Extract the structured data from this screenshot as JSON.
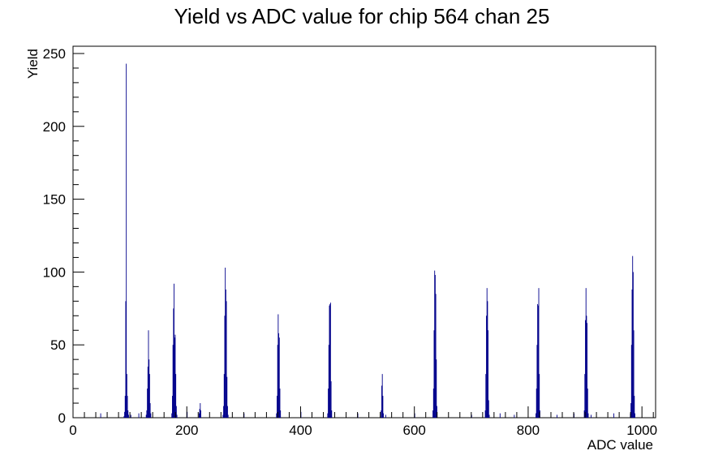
{
  "chart_data": {
    "type": "bar",
    "title": "Yield vs ADC value for chip 564 chan 25",
    "xlabel": "ADC value",
    "ylabel": "Yield",
    "xlim": [
      0,
      1024
    ],
    "ylim": [
      0,
      255
    ],
    "grid": false,
    "legend": "none",
    "x_ticks": [
      0,
      200,
      400,
      600,
      800,
      1000
    ],
    "y_ticks": [
      0,
      50,
      100,
      150,
      200,
      250
    ],
    "x_tick_labels": [
      "0",
      "200",
      "400",
      "600",
      "800",
      "1000"
    ],
    "y_tick_labels": [
      "0",
      "50",
      "100",
      "150",
      "200",
      "250"
    ],
    "bin_width": 1,
    "series": [
      {
        "color": "#00008b",
        "bins": [
          [
            48,
            3
          ],
          [
            89,
            1
          ],
          [
            90,
            4
          ],
          [
            91,
            15
          ],
          [
            92,
            80
          ],
          [
            93,
            243
          ],
          [
            94,
            30
          ],
          [
            95,
            15
          ],
          [
            96,
            5
          ],
          [
            97,
            2
          ],
          [
            101,
            2
          ],
          [
            115,
            3
          ],
          [
            128,
            2
          ],
          [
            129,
            5
          ],
          [
            130,
            20
          ],
          [
            131,
            35
          ],
          [
            132,
            60
          ],
          [
            133,
            40
          ],
          [
            134,
            30
          ],
          [
            135,
            10
          ],
          [
            136,
            3
          ],
          [
            173,
            3
          ],
          [
            174,
            15
          ],
          [
            175,
            50
          ],
          [
            176,
            75
          ],
          [
            177,
            92
          ],
          [
            178,
            55
          ],
          [
            179,
            57
          ],
          [
            180,
            30
          ],
          [
            181,
            8
          ],
          [
            182,
            2
          ],
          [
            200,
            4
          ],
          [
            221,
            3
          ],
          [
            222,
            6
          ],
          [
            223,
            10
          ],
          [
            224,
            5
          ],
          [
            263,
            2
          ],
          [
            264,
            8
          ],
          [
            265,
            30
          ],
          [
            266,
            70
          ],
          [
            267,
            103
          ],
          [
            268,
            88
          ],
          [
            269,
            80
          ],
          [
            270,
            28
          ],
          [
            271,
            8
          ],
          [
            272,
            2
          ],
          [
            300,
            3
          ],
          [
            357,
            3
          ],
          [
            358,
            15
          ],
          [
            359,
            50
          ],
          [
            360,
            71
          ],
          [
            361,
            58
          ],
          [
            362,
            55
          ],
          [
            363,
            20
          ],
          [
            364,
            5
          ],
          [
            400,
            4
          ],
          [
            447,
            3
          ],
          [
            448,
            20
          ],
          [
            449,
            50
          ],
          [
            450,
            77
          ],
          [
            451,
            78
          ],
          [
            452,
            79
          ],
          [
            453,
            25
          ],
          [
            454,
            5
          ],
          [
            500,
            3
          ],
          [
            541,
            5
          ],
          [
            542,
            22
          ],
          [
            543,
            30
          ],
          [
            544,
            15
          ],
          [
            545,
            3
          ],
          [
            549,
            2
          ],
          [
            600,
            3
          ],
          [
            632,
            5
          ],
          [
            633,
            20
          ],
          [
            634,
            60
          ],
          [
            635,
            101
          ],
          [
            636,
            98
          ],
          [
            637,
            85
          ],
          [
            638,
            40
          ],
          [
            639,
            8
          ],
          [
            700,
            2
          ],
          [
            724,
            5
          ],
          [
            725,
            30
          ],
          [
            726,
            70
          ],
          [
            727,
            89
          ],
          [
            728,
            80
          ],
          [
            729,
            60
          ],
          [
            730,
            12
          ],
          [
            731,
            2
          ],
          [
            750,
            3
          ],
          [
            775,
            2
          ],
          [
            813,
            3
          ],
          [
            814,
            20
          ],
          [
            815,
            50
          ],
          [
            816,
            78
          ],
          [
            817,
            77
          ],
          [
            818,
            89
          ],
          [
            819,
            30
          ],
          [
            820,
            5
          ],
          [
            850,
            2
          ],
          [
            880,
            3
          ],
          [
            898,
            5
          ],
          [
            899,
            30
          ],
          [
            900,
            67
          ],
          [
            901,
            89
          ],
          [
            902,
            70
          ],
          [
            903,
            65
          ],
          [
            904,
            20
          ],
          [
            905,
            3
          ],
          [
            910,
            2
          ],
          [
            950,
            3
          ],
          [
            979,
            3
          ],
          [
            980,
            10
          ],
          [
            981,
            50
          ],
          [
            982,
            88
          ],
          [
            983,
            111
          ],
          [
            984,
            100
          ],
          [
            985,
            60
          ],
          [
            986,
            15
          ],
          [
            987,
            3
          ]
        ]
      }
    ]
  }
}
